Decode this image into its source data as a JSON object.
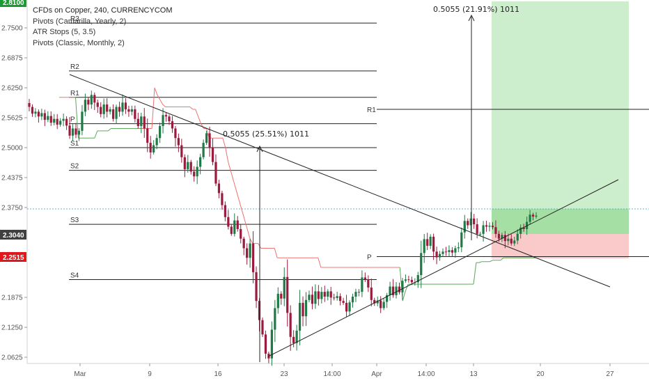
{
  "legend": {
    "title": "CFDs on Copper, 240, CURRENCYCOM",
    "pivots_yearly": "Pivots (Camarilla, Yearly, 2)",
    "atr": "ATR Stops (5, 3.5)",
    "pivots_monthly": "Pivots (Classic, Monthly, 2)"
  },
  "colors": {
    "up_candle": "#1f7a45",
    "down_candle": "#9b1b3e",
    "atr_down": "#f07070",
    "atr_up": "#58a858",
    "target_zone": "#c7ecc6",
    "target_zone_low": "#9ddc9c",
    "stop_zone": "#f9c4c4",
    "current_badge": "#404040",
    "stop_badge": "#e0181b",
    "target_badge": "#1a9a32"
  },
  "chart_data": {
    "type": "candlestick",
    "symbol": "CFDs on Copper",
    "timeframe": "240",
    "y_ticks": [
      "2.7500",
      "2.6875",
      "2.6250",
      "2.5625",
      "2.5000",
      "2.4375",
      "2.3750",
      "2.1875",
      "2.1250",
      "2.0625"
    ],
    "x_ticks": [
      "Mar",
      "9",
      "16",
      "23",
      "14:00",
      "Apr",
      "14:00",
      "13",
      "20",
      "27"
    ],
    "price_badges": {
      "target": "2.8100",
      "current": "2.3040",
      "stop": "2.2515"
    },
    "pivot_levels": [
      {
        "label": "R3",
        "value": 2.76
      },
      {
        "label": "R2",
        "value": 2.66
      },
      {
        "label": "R1",
        "value": 2.605
      },
      {
        "label": "P",
        "value": 2.55
      },
      {
        "label": "S1",
        "value": 2.5
      },
      {
        "label": "S2",
        "value": 2.4525
      },
      {
        "label": "S3",
        "value": 2.34
      },
      {
        "label": "S4",
        "value": 2.2245
      }
    ],
    "pivot_levels_april": [
      {
        "label": "R1",
        "value": 2.58
      },
      {
        "label": "P",
        "value": 2.2725
      }
    ],
    "measurements": [
      {
        "label": "0.5055 (25.51%) 1011"
      },
      {
        "label": "0.5055 (21.91%) 1011"
      }
    ],
    "position": {
      "entry": 2.296,
      "target": 2.81,
      "stop": 2.2515
    },
    "candles_close": [
      2.585,
      2.571,
      2.575,
      2.565,
      2.572,
      2.558,
      2.566,
      2.552,
      2.56,
      2.548,
      2.556,
      2.56,
      2.546,
      2.525,
      2.54,
      2.527,
      2.535,
      2.575,
      2.6,
      2.59,
      2.61,
      2.594,
      2.585,
      2.57,
      2.59,
      2.575,
      2.58,
      2.56,
      2.585,
      2.575,
      2.594,
      2.58,
      2.575,
      2.58,
      2.56,
      2.545,
      2.565,
      2.54,
      2.51,
      2.49,
      2.505,
      2.52,
      2.545,
      2.568,
      2.565,
      2.555,
      2.54,
      2.52,
      2.505,
      2.48,
      2.455,
      2.47,
      2.45,
      2.44,
      2.46,
      2.48,
      2.51,
      2.53,
      2.5,
      2.47,
      2.425,
      2.405,
      2.38,
      2.355,
      2.335,
      2.32,
      2.348,
      2.33,
      2.31,
      2.29,
      2.27,
      2.3,
      2.24,
      2.18,
      2.14,
      2.11,
      2.07,
      2.06,
      2.12,
      2.165,
      2.195,
      2.185,
      2.23,
      2.155,
      2.105,
      2.092,
      2.118,
      2.176,
      2.148,
      2.182,
      2.193,
      2.174,
      2.2,
      2.184,
      2.199,
      2.189,
      2.2,
      2.187,
      2.186,
      2.19,
      2.18,
      2.176,
      2.158,
      2.177,
      2.189,
      2.199,
      2.199,
      2.229,
      2.225,
      2.208,
      2.182,
      2.175,
      2.181,
      2.165,
      2.178,
      2.192,
      2.21,
      2.192,
      2.21,
      2.198,
      2.222,
      2.225,
      2.224,
      2.219,
      2.219,
      2.234,
      2.28,
      2.309,
      2.295,
      2.314,
      2.283,
      2.271,
      2.278,
      2.283,
      2.282,
      2.286,
      2.281,
      2.29,
      2.292,
      2.323,
      2.347,
      2.338,
      2.352,
      2.34,
      2.32,
      2.32,
      2.338,
      2.335,
      2.337,
      2.334,
      2.32,
      2.31,
      2.318,
      2.305,
      2.31,
      2.3,
      2.306,
      2.32,
      2.333,
      2.33,
      2.345,
      2.36,
      2.356,
      2.358
    ],
    "atr_stops": [
      2.605,
      2.605,
      2.605,
      2.605,
      2.605,
      2.605,
      2.605,
      2.52,
      2.52,
      2.52,
      2.52,
      2.52,
      2.52,
      2.52,
      2.535,
      2.535,
      2.535,
      2.535,
      2.535,
      2.54,
      2.54,
      2.54,
      2.54,
      2.54,
      2.54,
      2.54,
      2.54,
      2.54,
      2.54,
      2.54,
      2.54,
      2.54,
      2.54,
      2.54,
      2.54,
      2.625,
      2.61,
      2.6,
      2.59,
      2.585,
      2.585,
      2.585,
      2.585,
      2.585,
      2.585,
      2.585,
      2.585,
      2.585,
      2.585,
      2.58,
      2.58,
      2.565,
      2.55,
      2.54,
      2.54,
      2.52,
      2.52,
      2.52,
      2.52,
      2.52,
      2.52,
      2.5,
      2.47,
      2.45,
      2.43,
      2.41,
      2.39,
      2.37,
      2.35,
      2.33,
      2.31,
      2.3,
      2.3,
      2.3,
      2.29,
      2.29,
      2.29,
      2.29,
      2.29,
      2.29,
      2.27,
      2.27,
      2.27,
      2.27,
      2.27,
      2.27,
      2.27,
      2.27,
      2.27,
      2.27,
      2.27,
      2.27,
      2.27,
      2.27,
      2.27,
      2.27,
      2.25,
      2.25,
      2.25,
      2.25,
      2.25,
      2.25,
      2.25,
      2.25,
      2.25,
      2.25,
      2.25,
      2.25,
      2.25,
      2.25,
      2.25,
      2.25,
      2.25,
      2.25,
      2.25,
      2.25,
      2.25,
      2.25,
      2.25,
      2.25,
      2.25,
      2.25,
      2.25,
      2.25,
      2.25,
      2.25,
      2.18,
      2.2,
      2.215,
      2.215,
      2.215,
      2.215,
      2.215,
      2.215,
      2.215,
      2.215,
      2.215,
      2.215,
      2.215,
      2.215,
      2.215,
      2.215,
      2.215,
      2.215,
      2.215,
      2.215,
      2.215,
      2.215,
      2.215,
      2.215,
      2.215,
      2.215,
      2.215,
      2.26,
      2.26,
      2.262,
      2.262,
      2.262,
      2.262,
      2.265,
      2.265,
      2.265,
      2.265,
      2.27,
      2.27,
      2.27,
      2.27,
      2.27,
      2.27,
      2.27,
      2.27,
      2.27,
      2.27,
      2.27,
      2.27,
      2.27
    ]
  }
}
